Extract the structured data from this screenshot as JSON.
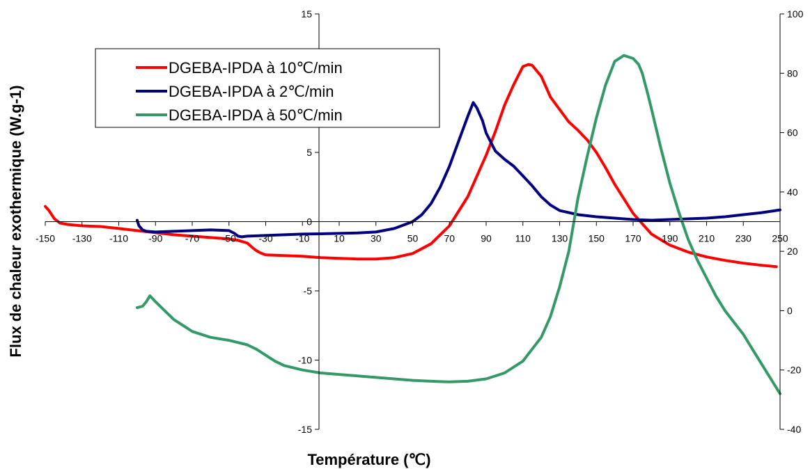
{
  "chart_data": {
    "type": "line",
    "title": "",
    "xlabel": "Température (℃)",
    "ylabel": "Flux de chaleur exothermique (W.g-1)",
    "xlim": [
      -150,
      250
    ],
    "ylim": [
      -15,
      15
    ],
    "y2lim": [
      -40,
      100
    ],
    "x_ticks": [
      -150,
      -130,
      -110,
      -90,
      -70,
      -50,
      -30,
      -10,
      10,
      30,
      50,
      70,
      90,
      110,
      130,
      150,
      170,
      190,
      210,
      230,
      250
    ],
    "y_ticks": [
      -15,
      -10,
      -5,
      0,
      5,
      10,
      15
    ],
    "y2_ticks": [
      -40,
      -20,
      0,
      20,
      40,
      60,
      80,
      100
    ],
    "x_tick_labels": [
      "-150",
      "-130",
      "-110",
      "-90",
      "-70",
      "-50",
      "-30",
      "-10",
      "10",
      "30",
      "50",
      "70",
      "90",
      "110",
      "130",
      "150",
      "170",
      "190",
      "210",
      "230",
      "250"
    ],
    "y_tick_labels": [
      "-15",
      "-10",
      "-5",
      "0",
      "5",
      "10",
      "15"
    ],
    "y2_tick_labels": [
      "-40",
      "-20",
      "0",
      "20",
      "40",
      "60",
      "80",
      "100"
    ],
    "grid": false,
    "legend_position": "top-left",
    "series": [
      {
        "name": "DGEBA-IPDA à 10℃/min",
        "color": "#ff0000",
        "axis": "left",
        "x": [
          -150,
          -148,
          -145,
          -142,
          -138,
          -130,
          -120,
          -110,
          -100,
          -90,
          -80,
          -70,
          -60,
          -50,
          -45,
          -40,
          -37,
          -35,
          -33,
          -30,
          -20,
          -10,
          0,
          10,
          20,
          30,
          40,
          50,
          60,
          70,
          80,
          90,
          95,
          100,
          105,
          110,
          113,
          115,
          120,
          125,
          130,
          135,
          140,
          145,
          150,
          155,
          160,
          170,
          180,
          190,
          200,
          210,
          220,
          230,
          240,
          248
        ],
        "y": [
          1.1,
          0.8,
          0.2,
          -0.1,
          -0.2,
          -0.3,
          -0.35,
          -0.5,
          -0.65,
          -0.8,
          -0.95,
          -1.05,
          -1.15,
          -1.25,
          -1.35,
          -1.55,
          -1.9,
          -2.1,
          -2.25,
          -2.4,
          -2.45,
          -2.5,
          -2.6,
          -2.65,
          -2.7,
          -2.7,
          -2.6,
          -2.3,
          -1.6,
          -0.3,
          1.8,
          4.8,
          6.5,
          8.4,
          9.9,
          11.2,
          11.35,
          11.3,
          10.5,
          9.0,
          8.1,
          7.2,
          6.6,
          5.9,
          5.0,
          3.9,
          2.7,
          0.6,
          -0.9,
          -1.7,
          -2.2,
          -2.55,
          -2.8,
          -3.0,
          -3.15,
          -3.25
        ]
      },
      {
        "name": "DGEBA-IPDA à 2℃/min",
        "color": "#000080",
        "axis": "left",
        "x": [
          -100,
          -99,
          -97,
          -95,
          -90,
          -80,
          -70,
          -60,
          -50,
          -47,
          -45,
          -43,
          -40,
          -30,
          -20,
          -10,
          0,
          10,
          20,
          30,
          40,
          50,
          55,
          60,
          65,
          70,
          75,
          80,
          83,
          85,
          88,
          90,
          95,
          100,
          105,
          110,
          115,
          120,
          125,
          130,
          140,
          150,
          160,
          170,
          180,
          190,
          200,
          210,
          220,
          230,
          240,
          250
        ],
        "y": [
          0.1,
          -0.3,
          -0.6,
          -0.7,
          -0.75,
          -0.7,
          -0.65,
          -0.6,
          -0.65,
          -0.85,
          -1.05,
          -1.1,
          -1.05,
          -1.0,
          -0.95,
          -0.9,
          -0.88,
          -0.85,
          -0.82,
          -0.75,
          -0.5,
          0.0,
          0.5,
          1.3,
          2.5,
          4.0,
          5.8,
          7.6,
          8.6,
          8.2,
          7.3,
          6.4,
          5.1,
          4.5,
          4.0,
          3.3,
          2.6,
          1.8,
          1.2,
          0.8,
          0.5,
          0.35,
          0.25,
          0.15,
          0.1,
          0.15,
          0.2,
          0.25,
          0.35,
          0.5,
          0.65,
          0.85
        ]
      },
      {
        "name": "DGEBA-IPDA à 50℃/min",
        "color": "#339966",
        "axis": "right",
        "x": [
          -100,
          -97,
          -95,
          -93,
          -90,
          -85,
          -80,
          -70,
          -60,
          -50,
          -40,
          -35,
          -30,
          -25,
          -20,
          -10,
          0,
          10,
          20,
          30,
          40,
          50,
          60,
          70,
          80,
          90,
          100,
          110,
          120,
          125,
          130,
          135,
          140,
          145,
          150,
          155,
          160,
          165,
          170,
          173,
          175,
          178,
          180,
          185,
          190,
          195,
          200,
          205,
          210,
          215,
          220,
          225,
          230,
          235,
          240,
          245,
          250
        ],
        "y": [
          1,
          1.5,
          3,
          5,
          3,
          0,
          -3,
          -7,
          -9,
          -10,
          -11.5,
          -13,
          -15,
          -17,
          -18.5,
          -20,
          -21,
          -21.5,
          -22,
          -22.5,
          -23,
          -23.5,
          -23.8,
          -24,
          -23.8,
          -23,
          -21,
          -17,
          -9,
          -2,
          8,
          20,
          38,
          52,
          65,
          76,
          84,
          86,
          85,
          83,
          80,
          73,
          68,
          55,
          43,
          33,
          24,
          17,
          11,
          5,
          0,
          -4,
          -8,
          -13,
          -18,
          -23,
          -28
        ]
      }
    ]
  }
}
